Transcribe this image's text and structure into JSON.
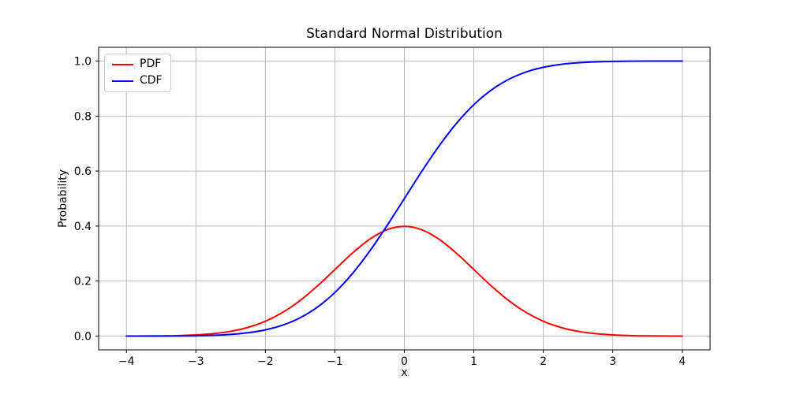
{
  "figure": {
    "background": "#ffffff",
    "text_color": "#000000"
  },
  "chart_data": {
    "type": "line",
    "title": "Standard Normal Distribution",
    "xlabel": "x",
    "ylabel": "Probability",
    "xlim": [
      -4.4,
      4.4
    ],
    "ylim": [
      -0.05,
      1.05
    ],
    "xticks": [
      -4,
      -3,
      -2,
      -1,
      0,
      1,
      2,
      3,
      4
    ],
    "xtick_labels": [
      "−4",
      "−3",
      "−2",
      "−1",
      "0",
      "1",
      "2",
      "3",
      "4"
    ],
    "yticks": [
      0.0,
      0.2,
      0.4,
      0.6,
      0.8,
      1.0
    ],
    "ytick_labels": [
      "0.0",
      "0.2",
      "0.4",
      "0.6",
      "0.8",
      "1.0"
    ],
    "grid": true,
    "grid_color": "#b0b0b0",
    "spine_color": "#000000",
    "legend_position": "upper left",
    "x": [
      -4,
      -3.75,
      -3.5,
      -3.25,
      -3,
      -2.75,
      -2.5,
      -2.25,
      -2,
      -1.75,
      -1.5,
      -1.25,
      -1,
      -0.75,
      -0.5,
      -0.25,
      0,
      0.25,
      0.5,
      0.75,
      1,
      1.25,
      1.5,
      1.75,
      2,
      2.25,
      2.5,
      2.75,
      3,
      3.25,
      3.5,
      3.75,
      4
    ],
    "series": [
      {
        "name": "PDF",
        "color": "#ff0000",
        "values": [
          0.0001,
          0.0004,
          0.0009,
          0.002,
          0.0044,
          0.0091,
          0.0175,
          0.0317,
          0.054,
          0.0863,
          0.1295,
          0.1826,
          0.242,
          0.3011,
          0.3521,
          0.3867,
          0.3989,
          0.3867,
          0.3521,
          0.3011,
          0.242,
          0.1826,
          0.1295,
          0.0863,
          0.054,
          0.0317,
          0.0175,
          0.0091,
          0.0044,
          0.002,
          0.0009,
          0.0004,
          0.0001
        ]
      },
      {
        "name": "CDF",
        "color": "#0000ff",
        "values": [
          3e-05,
          9e-05,
          0.00023,
          0.00058,
          0.00135,
          0.00298,
          0.00621,
          0.01222,
          0.02275,
          0.04006,
          0.06681,
          0.10565,
          0.15866,
          0.22663,
          0.30854,
          0.40129,
          0.5,
          0.59871,
          0.69146,
          0.77337,
          0.84134,
          0.89435,
          0.93319,
          0.95994,
          0.97725,
          0.98778,
          0.99379,
          0.99702,
          0.99865,
          0.99942,
          0.99977,
          0.99991,
          0.99997
        ]
      }
    ]
  }
}
